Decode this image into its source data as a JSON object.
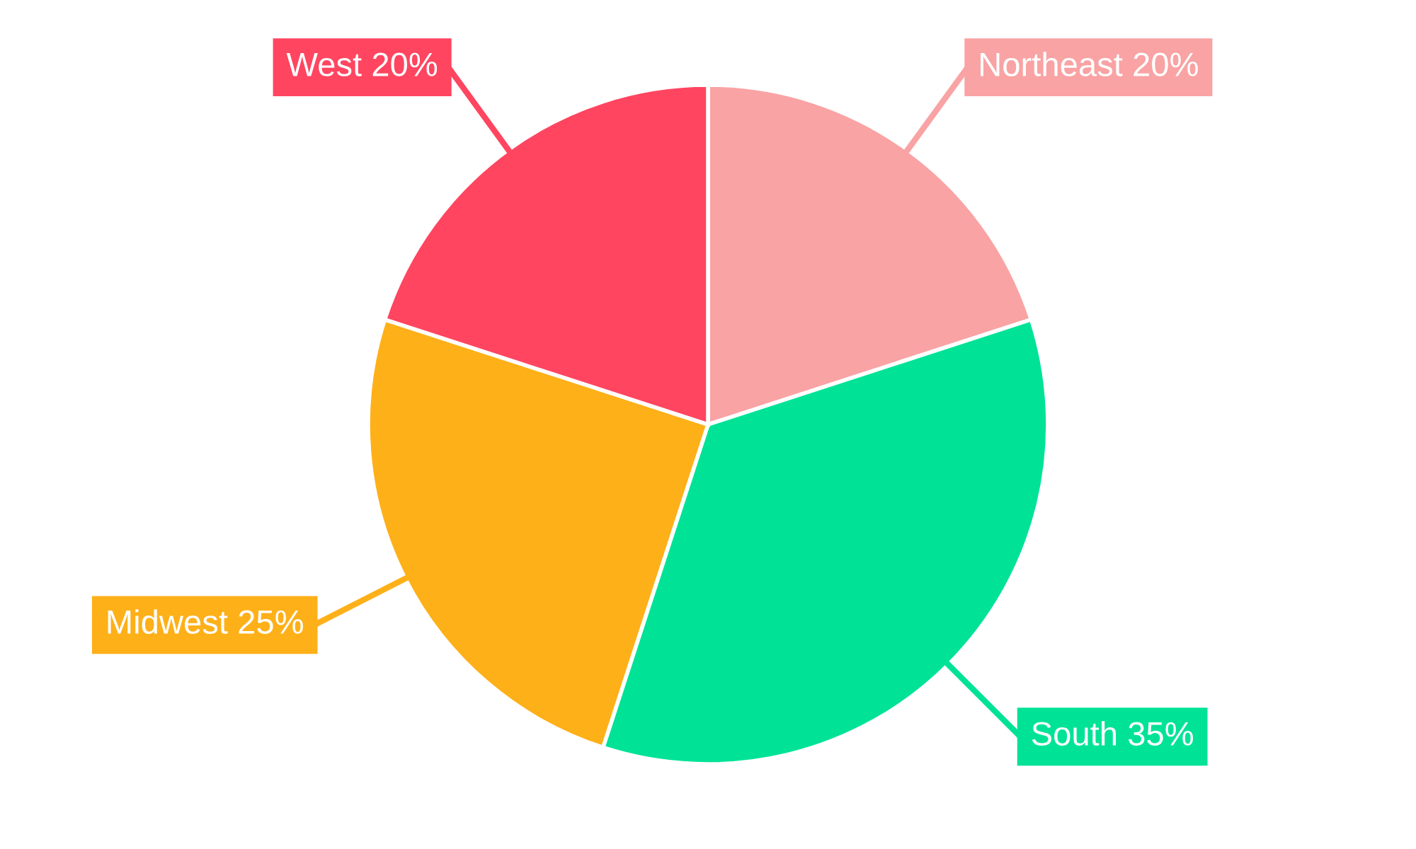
{
  "chart_data": {
    "type": "pie",
    "categories": [
      "Northeast",
      "South",
      "Midwest",
      "West"
    ],
    "values": [
      20,
      35,
      25,
      20
    ],
    "value_labels": [
      "20%",
      "35%",
      "25%",
      "20%"
    ],
    "colors": [
      "#f9a3a4",
      "#00e396",
      "#feb019",
      "#ff4560"
    ],
    "legend": false
  }
}
